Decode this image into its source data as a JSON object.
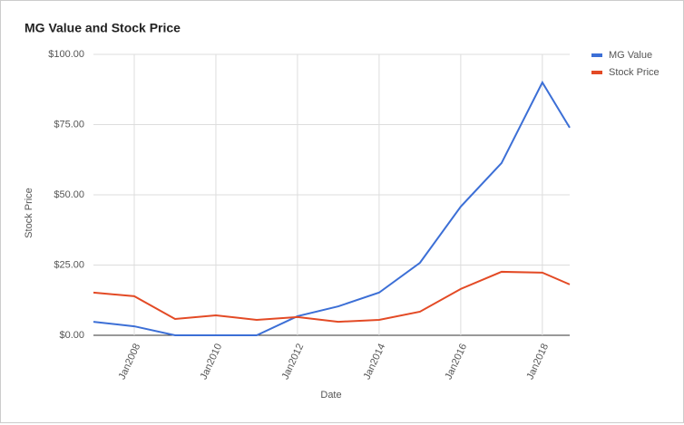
{
  "chart_data": {
    "type": "line",
    "title": "MG Value and Stock Price",
    "x_label": "Date",
    "y_label": "Stock Price",
    "x": [
      2007,
      2008,
      2009,
      2010,
      2011,
      2012,
      2013,
      2014,
      2015,
      2016,
      2017,
      2018,
      2018.67
    ],
    "series": [
      {
        "name": "MG Value",
        "color": "#3c6fd6",
        "values": [
          4.8,
          3.2,
          0,
          0,
          0,
          6.8,
          10.3,
          15.2,
          25.8,
          45.8,
          61.3,
          90,
          73.9
        ]
      },
      {
        "name": "Stock Price",
        "color": "#e34a25",
        "values": [
          15.2,
          13.9,
          5.8,
          7.1,
          5.5,
          6.5,
          4.8,
          5.5,
          8.4,
          16.5,
          22.6,
          22.3,
          18.1
        ]
      }
    ],
    "xlim": [
      2007,
      2018.67
    ],
    "xticks": [
      {
        "value": 2008,
        "label": "Jan2008"
      },
      {
        "value": 2010,
        "label": "Jan2010"
      },
      {
        "value": 2012,
        "label": "Jan2012"
      },
      {
        "value": 2014,
        "label": "Jan2014"
      },
      {
        "value": 2016,
        "label": "Jan2016"
      },
      {
        "value": 2018,
        "label": "Jan2018"
      }
    ],
    "ylim": [
      0,
      100
    ],
    "yticks": [
      {
        "value": 0,
        "label": "$0.00"
      },
      {
        "value": 25,
        "label": "$25.00"
      },
      {
        "value": 50,
        "label": "$50.00"
      },
      {
        "value": 75,
        "label": "$75.00"
      },
      {
        "value": 100,
        "label": "$100.00"
      }
    ],
    "grid": true,
    "legend": "right"
  }
}
